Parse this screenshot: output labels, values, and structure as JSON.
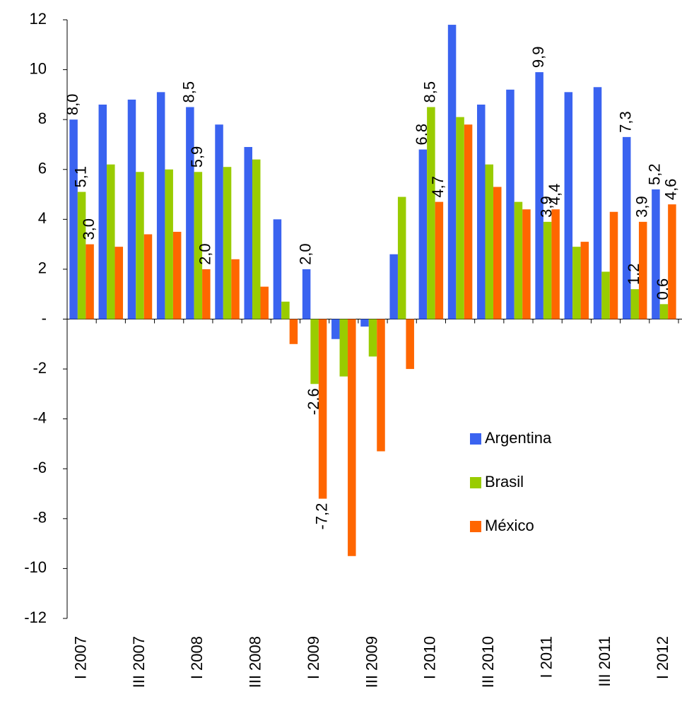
{
  "chart_data": {
    "type": "bar",
    "categories": [
      "I 2007",
      null,
      "III 2007",
      null,
      "I 2008",
      null,
      "III 2008",
      null,
      "I 2009",
      null,
      "III 2009",
      null,
      "I 2010",
      null,
      "III 2010",
      null,
      "I 2011",
      null,
      "III 2011",
      null,
      "I 2012"
    ],
    "series": [
      {
        "name": "Argentina",
        "color": "#3a63f0",
        "values": [
          8.0,
          8.6,
          8.8,
          9.1,
          8.5,
          7.8,
          6.9,
          4.0,
          2.0,
          -0.8,
          -0.3,
          2.6,
          6.8,
          11.8,
          8.6,
          9.2,
          9.9,
          9.1,
          9.3,
          7.3,
          5.2
        ],
        "value_labels": [
          "8,0",
          null,
          null,
          null,
          "8,5",
          null,
          null,
          null,
          "2,0",
          null,
          null,
          null,
          "6,8",
          null,
          null,
          null,
          "9,9",
          null,
          null,
          "7,3",
          "5,2"
        ]
      },
      {
        "name": "Brasil",
        "color": "#99cc00",
        "values": [
          5.1,
          6.2,
          5.9,
          6.0,
          5.9,
          6.1,
          6.4,
          0.7,
          -2.6,
          -2.3,
          -1.5,
          4.9,
          8.5,
          8.1,
          6.2,
          4.7,
          3.9,
          2.9,
          1.9,
          1.2,
          0.6
        ],
        "value_labels": [
          "5,1",
          null,
          null,
          null,
          "5,9",
          null,
          null,
          null,
          "-2,6",
          null,
          null,
          null,
          "8,5",
          null,
          null,
          null,
          "3,9",
          null,
          null,
          "1,2",
          "0,6"
        ]
      },
      {
        "name": "México",
        "color": "#ff6600",
        "values": [
          3.0,
          2.9,
          3.4,
          3.5,
          2.0,
          2.4,
          1.3,
          -1.0,
          -7.2,
          -9.5,
          -5.3,
          -2.0,
          4.7,
          7.8,
          5.3,
          4.4,
          4.4,
          3.1,
          4.3,
          3.9,
          4.6
        ],
        "value_labels": [
          "3,0",
          null,
          null,
          null,
          "2,0",
          null,
          null,
          null,
          "-7,2",
          null,
          null,
          null,
          "4,7",
          null,
          null,
          null,
          "4,4",
          null,
          null,
          "3,9",
          "4,6"
        ]
      }
    ],
    "ylim": [
      -12,
      12
    ],
    "yticks": [
      -12,
      -10,
      -8,
      -6,
      -4,
      -2,
      {
        "value": 0,
        "label": "-"
      },
      2,
      4,
      6,
      8,
      10,
      12
    ],
    "grid": false
  }
}
